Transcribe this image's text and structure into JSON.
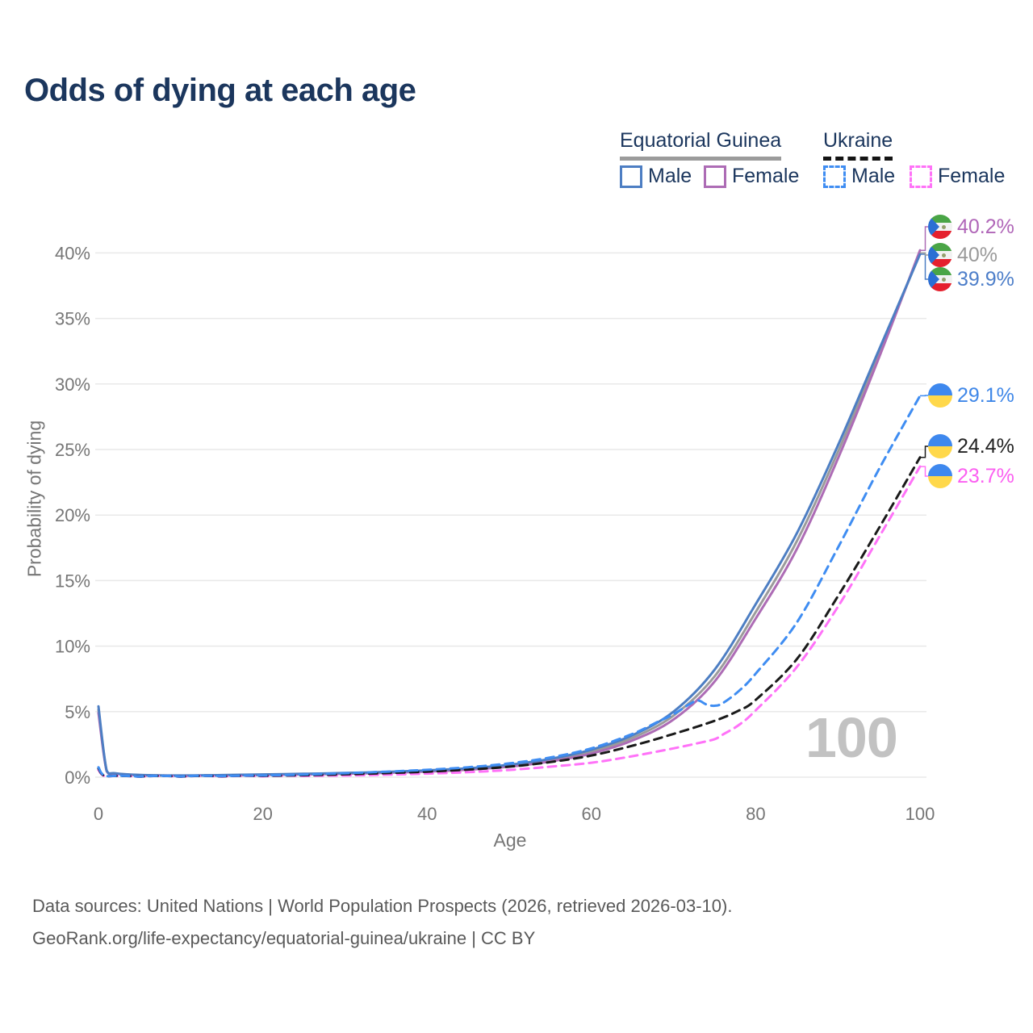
{
  "title": "Odds of dying at each age",
  "watermark": "100",
  "legend": {
    "groups": [
      {
        "label": "Equatorial Guinea",
        "line_style": "solid",
        "underline_color": "#9b9b9b"
      },
      {
        "label": "Ukraine",
        "line_style": "dashed",
        "underline_color": "#141414"
      }
    ],
    "items": [
      {
        "group": "Equatorial Guinea",
        "label": "Male",
        "color": "#4d7ec3",
        "style": "solid"
      },
      {
        "group": "Equatorial Guinea",
        "label": "Female",
        "color": "#ad6cb5",
        "style": "solid"
      },
      {
        "group": "Ukraine",
        "label": "Male",
        "color": "#3f8df2",
        "style": "dashed"
      },
      {
        "group": "Ukraine",
        "label": "Female",
        "color": "#ff72f8",
        "style": "dashed"
      }
    ]
  },
  "footer": {
    "line1": "Data sources: United Nations | World Population Prospects (2026, retrieved 2026-03-10).",
    "line2": "GeoRank.org/life-expectancy/equatorial-guinea/ukraine | CC BY"
  },
  "chart_data": {
    "type": "line",
    "title": "Odds of dying at each age",
    "xlabel": "Age",
    "ylabel": "Probability of dying",
    "xlim": [
      0,
      100
    ],
    "ylim_percent": [
      0,
      42
    ],
    "xticks": [
      0,
      20,
      40,
      60,
      80,
      100
    ],
    "ytick_labels": [
      "0%",
      "5%",
      "10%",
      "15%",
      "20%",
      "25%",
      "30%",
      "35%",
      "40%"
    ],
    "yticks_percent": [
      0,
      5,
      10,
      15,
      20,
      25,
      30,
      35,
      40
    ],
    "grid": "horizontal",
    "legend_position": "top-right",
    "series": [
      {
        "name": "Equatorial Guinea — Male",
        "country": "Equatorial Guinea",
        "sex": "Male",
        "color": "#4d7ec3",
        "dash": false,
        "end_label": "39.9%",
        "end_value_percent": 39.9,
        "points": [
          [
            0,
            5.4
          ],
          [
            1,
            0.5
          ],
          [
            2,
            0.3
          ],
          [
            5,
            0.17
          ],
          [
            10,
            0.13
          ],
          [
            15,
            0.16
          ],
          [
            20,
            0.21
          ],
          [
            25,
            0.26
          ],
          [
            30,
            0.32
          ],
          [
            35,
            0.4
          ],
          [
            40,
            0.52
          ],
          [
            45,
            0.68
          ],
          [
            50,
            0.95
          ],
          [
            55,
            1.4
          ],
          [
            60,
            2.1
          ],
          [
            65,
            3.2
          ],
          [
            70,
            5.0
          ],
          [
            75,
            8.2
          ],
          [
            80,
            13.2
          ],
          [
            85,
            18.6
          ],
          [
            90,
            25.3
          ],
          [
            95,
            32.6
          ],
          [
            100,
            39.9
          ]
        ]
      },
      {
        "name": "Equatorial Guinea — Female",
        "country": "Equatorial Guinea",
        "sex": "Female",
        "color": "#ad6cb5",
        "dash": false,
        "end_label": "40.2%",
        "end_value_percent": 40.2,
        "points": [
          [
            0,
            4.9
          ],
          [
            1,
            0.45
          ],
          [
            2,
            0.27
          ],
          [
            5,
            0.15
          ],
          [
            10,
            0.11
          ],
          [
            15,
            0.13
          ],
          [
            20,
            0.17
          ],
          [
            25,
            0.21
          ],
          [
            30,
            0.26
          ],
          [
            35,
            0.33
          ],
          [
            40,
            0.43
          ],
          [
            45,
            0.57
          ],
          [
            50,
            0.8
          ],
          [
            55,
            1.2
          ],
          [
            60,
            1.8
          ],
          [
            65,
            2.8
          ],
          [
            70,
            4.4
          ],
          [
            75,
            7.3
          ],
          [
            80,
            12.1
          ],
          [
            85,
            17.4
          ],
          [
            90,
            24.3
          ],
          [
            95,
            32.0
          ],
          [
            100,
            40.2
          ]
        ]
      },
      {
        "name": "Equatorial Guinea — Both sexes",
        "country": "Equatorial Guinea",
        "sex": "Both",
        "color": "#9b9b9b",
        "dash": false,
        "end_label": "40%",
        "end_value_percent": 40.0,
        "points": [
          [
            0,
            5.15
          ],
          [
            1,
            0.48
          ],
          [
            2,
            0.28
          ],
          [
            5,
            0.16
          ],
          [
            10,
            0.12
          ],
          [
            15,
            0.14
          ],
          [
            20,
            0.19
          ],
          [
            25,
            0.23
          ],
          [
            30,
            0.29
          ],
          [
            35,
            0.36
          ],
          [
            40,
            0.47
          ],
          [
            45,
            0.62
          ],
          [
            50,
            0.87
          ],
          [
            55,
            1.3
          ],
          [
            60,
            1.95
          ],
          [
            65,
            3.0
          ],
          [
            70,
            4.7
          ],
          [
            75,
            7.7
          ],
          [
            80,
            12.6
          ],
          [
            85,
            18.0
          ],
          [
            90,
            24.8
          ],
          [
            95,
            32.3
          ],
          [
            100,
            40.0
          ]
        ]
      },
      {
        "name": "Ukraine — Male",
        "country": "Ukraine",
        "sex": "Male",
        "color": "#3f8df2",
        "dash": true,
        "end_label": "29.1%",
        "end_value_percent": 29.1,
        "points": [
          [
            0,
            0.75
          ],
          [
            1,
            0.07
          ],
          [
            5,
            0.04
          ],
          [
            10,
            0.05
          ],
          [
            15,
            0.08
          ],
          [
            20,
            0.13
          ],
          [
            25,
            0.2
          ],
          [
            30,
            0.3
          ],
          [
            35,
            0.42
          ],
          [
            40,
            0.56
          ],
          [
            45,
            0.76
          ],
          [
            50,
            1.05
          ],
          [
            55,
            1.5
          ],
          [
            60,
            2.2
          ],
          [
            65,
            3.3
          ],
          [
            68,
            4.2
          ],
          [
            70,
            4.8
          ],
          [
            72,
            5.6
          ],
          [
            73,
            5.85
          ],
          [
            74,
            5.55
          ],
          [
            75,
            5.45
          ],
          [
            76,
            5.65
          ],
          [
            78,
            6.6
          ],
          [
            80,
            7.9
          ],
          [
            85,
            11.8
          ],
          [
            90,
            17.5
          ],
          [
            95,
            23.5
          ],
          [
            100,
            29.1
          ]
        ]
      },
      {
        "name": "Ukraine — Female",
        "country": "Ukraine",
        "sex": "Female",
        "color": "#ff72f8",
        "dash": true,
        "end_label": "23.7%",
        "end_value_percent": 23.7,
        "points": [
          [
            0,
            0.55
          ],
          [
            1,
            0.05
          ],
          [
            5,
            0.03
          ],
          [
            10,
            0.03
          ],
          [
            15,
            0.04
          ],
          [
            20,
            0.06
          ],
          [
            25,
            0.09
          ],
          [
            30,
            0.13
          ],
          [
            35,
            0.19
          ],
          [
            40,
            0.27
          ],
          [
            45,
            0.38
          ],
          [
            50,
            0.55
          ],
          [
            55,
            0.8
          ],
          [
            60,
            1.1
          ],
          [
            65,
            1.6
          ],
          [
            70,
            2.2
          ],
          [
            73,
            2.6
          ],
          [
            75,
            2.9
          ],
          [
            76,
            3.25
          ],
          [
            78,
            4.0
          ],
          [
            80,
            5.1
          ],
          [
            85,
            8.4
          ],
          [
            90,
            13.0
          ],
          [
            95,
            18.3
          ],
          [
            100,
            23.7
          ]
        ]
      },
      {
        "name": "Ukraine — Both sexes",
        "country": "Ukraine",
        "sex": "Both",
        "color": "#1a1a1a",
        "dash": true,
        "end_label": "24.4%",
        "end_value_percent": 24.4,
        "points": [
          [
            0,
            0.65
          ],
          [
            1,
            0.06
          ],
          [
            5,
            0.035
          ],
          [
            10,
            0.04
          ],
          [
            15,
            0.06
          ],
          [
            20,
            0.1
          ],
          [
            25,
            0.15
          ],
          [
            30,
            0.22
          ],
          [
            35,
            0.31
          ],
          [
            40,
            0.42
          ],
          [
            45,
            0.58
          ],
          [
            50,
            0.8
          ],
          [
            55,
            1.15
          ],
          [
            60,
            1.65
          ],
          [
            65,
            2.4
          ],
          [
            70,
            3.3
          ],
          [
            75,
            4.3
          ],
          [
            78,
            5.1
          ],
          [
            80,
            5.9
          ],
          [
            85,
            9.0
          ],
          [
            90,
            13.8
          ],
          [
            95,
            19.0
          ],
          [
            100,
            24.4
          ]
        ]
      }
    ]
  }
}
